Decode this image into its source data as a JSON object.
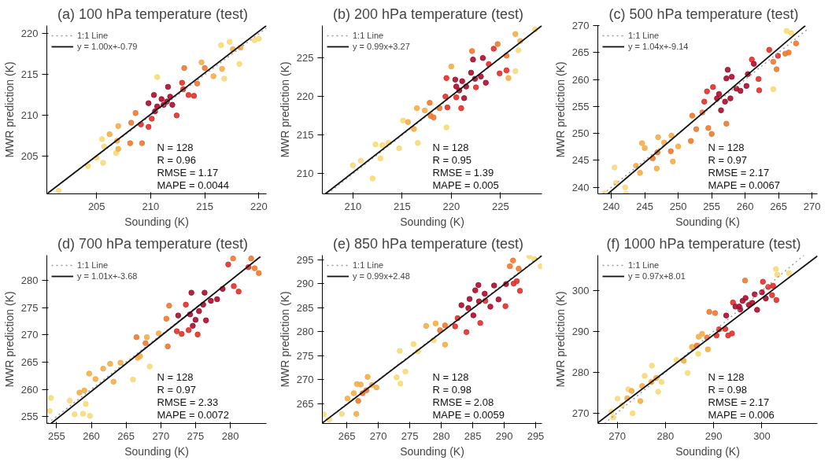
{
  "chart_data": [
    {
      "type": "scatter",
      "title": "(a)   100 hPa temperature (test)",
      "xlabel": "Sounding (K)",
      "ylabel": "MWR prediction (K)",
      "xlim": [
        200.4,
        220.7
      ],
      "ylim": [
        200.4,
        221
      ],
      "xticks": [
        205,
        210,
        215,
        220
      ],
      "yticks": [
        205,
        210,
        215,
        220
      ],
      "grid": false,
      "legend": "top left",
      "annotations": [
        "N = 128",
        "R = 0.96",
        "RMSE = 1.17",
        "MAPE = 0.0044"
      ],
      "series": [
        {
          "type": "scatter",
          "marker": "circle",
          "color": "#f7dc7a",
          "x": [
            201.5,
            204.2,
            205,
            205.6,
            205.5,
            205.7,
            206.8,
            216.5,
            217.3,
            219.6,
            220,
            216.8,
            218.2,
            210.6
          ],
          "values": [
            200.8,
            203.8,
            204.8,
            204.2,
            207.1,
            206.2,
            205.4,
            218.6,
            219,
            219.2,
            219.4,
            214.5,
            216.3,
            214.7
          ]
        },
        {
          "type": "scatter",
          "marker": "circle",
          "color": "#f5ae4a",
          "x": [
            206.2,
            207,
            206.9,
            207,
            216.6,
            217.6,
            218.3,
            215.8,
            214.7
          ],
          "values": [
            207.7,
            208.7,
            206.9,
            205.9,
            215.7,
            218.1,
            218.3,
            214.8,
            216.5
          ]
        },
        {
          "type": "scatter",
          "marker": "circle",
          "color": "#ef7a33",
          "x": [
            208.2,
            208.1,
            208.6,
            209.2,
            215,
            213.1,
            214.3
          ],
          "values": [
            209.1,
            206.6,
            210.3,
            206.6,
            215.8,
            215.8,
            213.9
          ]
        },
        {
          "type": "scatter",
          "marker": "circle",
          "color": "#e0322a",
          "x": [
            209.1,
            209.8,
            210.1,
            212.4,
            213,
            213.5,
            214,
            212.9
          ],
          "values": [
            208.9,
            208.6,
            209.6,
            210,
            213.2,
            212.5,
            212.4,
            214
          ]
        },
        {
          "type": "scatter",
          "marker": "circle",
          "color": "#a8102e",
          "x": [
            210.6,
            211,
            211.5,
            211.2,
            211.6,
            212,
            210.4,
            209.8,
            210.3,
            211.8
          ],
          "values": [
            211.1,
            212,
            211.7,
            211.3,
            213.5,
            211.3,
            210.5,
            211.5,
            212.5,
            212.3
          ]
        },
        {
          "type": "line",
          "name": "1:1 Line",
          "color": "#999999",
          "line_style": "dotted",
          "x": [
            200.4,
            220.7
          ],
          "values": [
            200.4,
            220.7
          ]
        },
        {
          "type": "line",
          "name": "y = 1.00x+-0.79",
          "color": "#111111",
          "line_style": "solid",
          "x": [
            200.5,
            220.7
          ],
          "values": [
            200.5,
            221
          ]
        }
      ]
    },
    {
      "type": "scatter",
      "title": "(b)   200 hPa temperature (test)",
      "xlabel": "Sounding (K)",
      "ylabel": "MWR prediction (K)",
      "xlim": [
        206.9,
        229.2
      ],
      "ylim": [
        207.4,
        229.2
      ],
      "xticks": [
        210,
        215,
        220,
        225
      ],
      "yticks": [
        210,
        215,
        220,
        225
      ],
      "grid": false,
      "legend": "top left",
      "annotations": [
        "N = 128",
        "R = 0.95",
        "RMSE = 1.39",
        "MAPE = 0.005"
      ],
      "series": [
        {
          "type": "scatter",
          "marker": "circle",
          "color": "#f7dc7a",
          "x": [
            210,
            210.8,
            212,
            212.3,
            212.8,
            213,
            213.6,
            214.7,
            228.5,
            215.1,
            216.6,
            219.5,
            226.5,
            226.8
          ],
          "values": [
            211.1,
            211.7,
            209.4,
            213.8,
            212,
            213.7,
            214,
            213.3,
            228.7,
            216.9,
            214,
            216,
            223.3,
            226
          ]
        },
        {
          "type": "scatter",
          "marker": "circle",
          "color": "#f5ae4a",
          "x": [
            215.6,
            216.2,
            216.5,
            217.3,
            220,
            226.5,
            227,
            225.8
          ],
          "values": [
            216.7,
            215.8,
            218.5,
            218.2,
            223.9,
            228.1,
            227.2,
            222.4
          ]
        },
        {
          "type": "scatter",
          "marker": "circle",
          "color": "#ef7a33",
          "x": [
            217.8,
            218.2,
            218.8,
            222.1,
            224.7,
            225.6,
            217.9
          ],
          "values": [
            219.2,
            217.3,
            218.5,
            225.9,
            226.8,
            225.3,
            217.5
          ]
        },
        {
          "type": "scatter",
          "marker": "circle",
          "color": "#e0322a",
          "x": [
            219.4,
            219.5,
            219.6,
            220.5,
            221,
            223.8,
            224.9,
            222.5,
            224.3,
            225.6
          ],
          "values": [
            220,
            222.4,
            218.6,
            219.9,
            218.5,
            224.2,
            223,
            221.2,
            226.2,
            223.4
          ]
        },
        {
          "type": "scatter",
          "marker": "circle",
          "color": "#a8102e",
          "x": [
            220.5,
            220.8,
            221.3,
            221.5,
            222,
            222.4,
            223,
            223.2,
            223.5,
            220.4,
            222.2,
            221.1
          ],
          "values": [
            221.3,
            220.8,
            219.8,
            221.3,
            223.1,
            222.3,
            222.6,
            225,
            221.8,
            222.2,
            224.8,
            222
          ]
        },
        {
          "type": "line",
          "name": "1:1 Line",
          "color": "#999999",
          "line_style": "dotted",
          "x": [
            207.4,
            229.2
          ],
          "values": [
            207.4,
            229.2
          ]
        },
        {
          "type": "line",
          "name": "y = 0.99x+3.27",
          "color": "#111111",
          "line_style": "solid",
          "x": [
            207.2,
            229.2
          ],
          "values": [
            207.4,
            229.2
          ]
        }
      ]
    },
    {
      "type": "scatter",
      "title": "(c)   500 hPa temperature (test)",
      "xlabel": "Sounding (K)",
      "ylabel": "MWR prediction (K)",
      "xlim": [
        238,
        270.8
      ],
      "ylim": [
        238.8,
        270
      ],
      "xticks": [
        240,
        245,
        250,
        255,
        260,
        265,
        270
      ],
      "yticks": [
        240,
        245,
        250,
        255,
        260,
        265,
        270
      ],
      "grid": false,
      "legend": "top left",
      "annotations": [
        "N = 128",
        "R = 0.97",
        "RMSE = 2.17",
        "MAPE = 0.0067"
      ],
      "series": [
        {
          "type": "scatter",
          "marker": "circle",
          "color": "#f7dc7a",
          "x": [
            240.5,
            240.7,
            242.1,
            242.2,
            264.2,
            266.2,
            266.9,
            239
          ],
          "values": [
            243.7,
            240.8,
            240,
            238.8,
            258.2,
            269,
            268.6,
            238.9
          ]
        },
        {
          "type": "scatter",
          "marker": "circle",
          "color": "#f5ae4a",
          "x": [
            243.7,
            244.6,
            245,
            244.3,
            247,
            247.9,
            249,
            249.2,
            250,
            246.8
          ],
          "values": [
            244,
            248.2,
            247.3,
            242.7,
            249.3,
            248.3,
            249.6,
            244.8,
            247.6,
            243.5
          ]
        },
        {
          "type": "scatter",
          "marker": "circle",
          "color": "#ef7a33",
          "x": [
            246.2,
            246.9,
            248.9,
            251.9,
            252.1,
            252.7,
            253.6,
            254.5,
            255,
            257.2,
            264.2,
            264.7,
            266.5,
            267.6,
            266
          ],
          "values": [
            245.4,
            246.5,
            246.7,
            248.6,
            253.3,
            250.8,
            253.9,
            251,
            249.9,
            251.8,
            263.3,
            261.9,
            265,
            266.7,
            264.8
          ]
        },
        {
          "type": "scatter",
          "marker": "circle",
          "color": "#e0322a",
          "x": [
            253.9,
            254.3,
            255.2,
            261,
            262,
            263.6,
            264.9,
            262.1
          ],
          "values": [
            255.9,
            257.8,
            258.6,
            263.7,
            260.1,
            265.5,
            264.4,
            258
          ]
        },
        {
          "type": "scatter",
          "marker": "circle",
          "color": "#a8102e",
          "x": [
            255.8,
            256.1,
            256.4,
            257,
            257.4,
            258,
            257.8,
            258.7,
            259.3,
            260.2,
            260.4,
            261.3,
            257.2
          ],
          "values": [
            256.5,
            257.3,
            254.3,
            255.9,
            261.8,
            260.5,
            256.5,
            258.3,
            257.9,
            258.8,
            261,
            262.9,
            260.2
          ]
        },
        {
          "type": "line",
          "name": "1:1 Line",
          "color": "#999999",
          "line_style": "dotted",
          "x": [
            238.8,
            269.5
          ],
          "values": [
            238.8,
            269.5
          ]
        },
        {
          "type": "line",
          "name": "y = 1.04x+-9.14",
          "color": "#111111",
          "line_style": "solid",
          "x": [
            239.5,
            269
          ],
          "values": [
            238.8,
            270
          ]
        }
      ]
    },
    {
      "type": "scatter",
      "title": "(d)   700 hPa temperature (test)",
      "xlabel": "Sounding (K)",
      "ylabel": "MWR prediction (K)",
      "xlim": [
        253.6,
        285.2
      ],
      "ylim": [
        253.7,
        284.7
      ],
      "xticks": [
        255,
        260,
        265,
        270,
        275,
        280
      ],
      "yticks": [
        255,
        260,
        265,
        270,
        275,
        280
      ],
      "grid": false,
      "legend": "top left",
      "annotations": [
        "N = 128",
        "R = 0.97",
        "RMSE = 2.33",
        "MAPE = 0.0072"
      ],
      "series": [
        {
          "type": "scatter",
          "marker": "circle",
          "color": "#f7dc7a",
          "x": [
            254.2,
            254,
            256.9,
            257.6,
            258.8,
            259.2,
            259.8,
            266,
            268.4
          ],
          "values": [
            258.4,
            256,
            257.9,
            255.4,
            255.5,
            257.3,
            255.1,
            261.8,
            264.2
          ]
        },
        {
          "type": "scatter",
          "marker": "circle",
          "color": "#f5ae4a",
          "x": [
            258.3,
            259,
            259.7,
            260.6,
            261.7,
            262.7,
            263.2,
            264.2,
            266.7,
            267,
            268,
            269.7
          ],
          "values": [
            259.4,
            259.8,
            262.9,
            261.9,
            263.8,
            264.7,
            261.4,
            264.9,
            265.8,
            266.1,
            269.6,
            270.3
          ]
        },
        {
          "type": "scatter",
          "marker": "circle",
          "color": "#ef7a33",
          "x": [
            266.5,
            267.8,
            271,
            270.8,
            271.2,
            283,
            284.1,
            283.5,
            280.4
          ],
          "values": [
            269.6,
            268.5,
            267.9,
            273,
            275.4,
            284.1,
            281.4,
            282.3,
            284.1
          ]
        },
        {
          "type": "scatter",
          "marker": "circle",
          "color": "#e0322a",
          "x": [
            272.3,
            273,
            273.6,
            274,
            279.7,
            281.2,
            280.5,
            282.6,
            275.3
          ],
          "values": [
            270.7,
            270.2,
            275.6,
            270.9,
            283,
            278,
            279,
            282.5,
            270.1
          ]
        },
        {
          "type": "scatter",
          "marker": "circle",
          "color": "#a8102e",
          "x": [
            272.5,
            274.2,
            274.6,
            275,
            275.5,
            276.1,
            276.3,
            277.2,
            278.1,
            278.9,
            274.4,
            276.5
          ],
          "values": [
            273.6,
            273.8,
            271.7,
            272.8,
            274.4,
            275.6,
            277.8,
            276.3,
            276.6,
            278.5,
            277.8,
            272.7
          ]
        },
        {
          "type": "line",
          "name": "1:1 Line",
          "color": "#999999",
          "line_style": "dotted",
          "x": [
            253.7,
            284.5
          ],
          "values": [
            253.7,
            284.5
          ]
        },
        {
          "type": "line",
          "name": "y = 1.01x+-3.68",
          "color": "#111111",
          "line_style": "solid",
          "x": [
            254.2,
            284.3
          ],
          "values": [
            253.7,
            284.4
          ]
        }
      ]
    },
    {
      "type": "scatter",
      "title": "(e)   850 hPa temperature (test)",
      "xlabel": "Sounding (K)",
      "ylabel": "MWR prediction (K)",
      "xlim": [
        261.1,
        296
      ],
      "ylim": [
        260.9,
        295.9
      ],
      "xticks": [
        265,
        270,
        275,
        280,
        285,
        290,
        295
      ],
      "yticks": [
        265,
        270,
        275,
        280,
        285,
        290,
        295
      ],
      "grid": false,
      "legend": "top left",
      "annotations": [
        "N = 128",
        "R = 0.98",
        "RMSE = 2.08",
        "MAPE = 0.0059"
      ],
      "series": [
        {
          "type": "scatter",
          "marker": "circle",
          "color": "#f7dc7a",
          "x": [
            261.3,
            262.2,
            264.2,
            272.9,
            273.4,
            274.3,
            273.5,
            275.6,
            276.3,
            278.8,
            294,
            295.8,
            294.8
          ],
          "values": [
            262.8,
            261.7,
            262.9,
            270.5,
            276,
            271.7,
            269.2,
            277.4,
            275.9,
            278.2,
            295.7,
            293.6,
            295.1
          ]
        },
        {
          "type": "scatter",
          "marker": "circle",
          "color": "#f5ae4a",
          "x": [
            265.1,
            266.1,
            266.5,
            266.6,
            267.2,
            268.3,
            269,
            269.7,
            277.6,
            279.1,
            280.6
          ],
          "values": [
            266.1,
            267.2,
            262.9,
            269.1,
            269,
            270.6,
            268.9,
            268.4,
            281.2,
            281.7,
            277.3
          ]
        },
        {
          "type": "scatter",
          "marker": "circle",
          "color": "#ef7a33",
          "x": [
            266.8,
            267.5,
            268.1,
            279.8,
            280.6,
            290.9,
            292.3,
            291.4
          ],
          "values": [
            265.6,
            267.2,
            267.8,
            280.3,
            281.3,
            293.6,
            293.1,
            294.8
          ]
        },
        {
          "type": "scatter",
          "marker": "circle",
          "color": "#e0322a",
          "x": [
            282.2,
            282.6,
            284,
            286.2,
            287,
            290.2,
            291.5,
            292,
            292.5
          ],
          "values": [
            281.1,
            282.8,
            279.9,
            281.8,
            286.4,
            285.3,
            290,
            290.5,
            288.5
          ]
        },
        {
          "type": "scatter",
          "marker": "circle",
          "color": "#a8102e",
          "x": [
            283.2,
            284.5,
            285.1,
            285.4,
            286,
            286.9,
            287.8,
            288.4,
            289.1,
            290.3,
            285.9,
            284.3
          ],
          "values": [
            285.5,
            286.8,
            283.4,
            288.6,
            286.3,
            287.9,
            285.2,
            289.6,
            286.7,
            289.9,
            289.7,
            284.9
          ]
        },
        {
          "type": "line",
          "name": "1:1 Line",
          "color": "#999999",
          "line_style": "dotted",
          "x": [
            261.1,
            295.9
          ],
          "values": [
            261.1,
            295.9
          ]
        },
        {
          "type": "line",
          "name": "y = 0.99x+2.48",
          "color": "#111111",
          "line_style": "solid",
          "x": [
            261.1,
            296
          ],
          "values": [
            261,
            295.8
          ]
        }
      ]
    },
    {
      "type": "scatter",
      "title": "(f)   1000 hPa temperature (test)",
      "xlabel": "Sounding (K)",
      "ylabel": "MWR prediction (K)",
      "xlim": [
        266,
        311.5
      ],
      "ylim": [
        267.4,
        308.7
      ],
      "xticks": [
        270,
        280,
        290,
        300
      ],
      "yticks": [
        270,
        280,
        290,
        300
      ],
      "grid": false,
      "legend": "top left",
      "annotations": [
        "N = 128",
        "R = 0.98",
        "RMSE = 2.17",
        "MAPE = 0.006"
      ],
      "series": [
        {
          "type": "scatter",
          "marker": "circle",
          "color": "#f7dc7a",
          "x": [
            268.8,
            269.2,
            270.1,
            271,
            272.3,
            273.2,
            275.7,
            277.2,
            278.5,
            279.2,
            282.3,
            284.6,
            286.8,
            302.9,
            305.6,
            303.2
          ],
          "values": [
            270.3,
            268.9,
            273.5,
            271.9,
            275.8,
            269.9,
            279.1,
            281.6,
            275.2,
            277.6,
            283,
            279.8,
            284.5,
            305.3,
            304.3,
            303.9
          ]
        },
        {
          "type": "scatter",
          "marker": "circle",
          "color": "#f5ae4a",
          "x": [
            272.1,
            273,
            274.8,
            275.2,
            277.1,
            278.1,
            283.8,
            285.5,
            286.9,
            287.6,
            288.8
          ],
          "values": [
            273.6,
            275.4,
            272.9,
            276.6,
            277.6,
            278.6,
            282.8,
            286.2,
            288.7,
            289.4,
            285.6
          ]
        },
        {
          "type": "scatter",
          "marker": "circle",
          "color": "#ef7a33",
          "x": [
            286.5,
            288.6,
            289.1,
            290.3,
            296.5
          ],
          "values": [
            286.5,
            288.5,
            294.8,
            294.5,
            302.5
          ]
        },
        {
          "type": "scatter",
          "marker": "circle",
          "color": "#e0322a",
          "x": [
            290.6,
            291.1,
            292.4,
            293,
            293.8,
            294,
            301.3,
            302.1,
            302.3,
            303,
            300.2
          ],
          "values": [
            289,
            290.5,
            290.6,
            289,
            289.5,
            297.1,
            300.9,
            298.9,
            301.2,
            297.7,
            302.2
          ]
        },
        {
          "type": "scatter",
          "marker": "circle",
          "color": "#a8102e",
          "x": [
            292.6,
            294.5,
            295.3,
            296,
            296.6,
            297.3,
            298,
            298.5,
            299,
            300,
            300.8,
            295.5
          ],
          "values": [
            293.9,
            296.1,
            296.1,
            297.5,
            298.2,
            296.5,
            297,
            299.1,
            295.3,
            299.6,
            298.1,
            295.4
          ]
        },
        {
          "type": "line",
          "name": "1:1 Line",
          "color": "#999999",
          "line_style": "dotted",
          "x": [
            267.4,
            308.7
          ],
          "values": [
            267.4,
            308.7
          ]
        },
        {
          "type": "line",
          "name": "y = 0.97x+8.01",
          "color": "#111111",
          "line_style": "solid",
          "x": [
            266,
            311.5
          ],
          "values": [
            267.6,
            308.5
          ]
        }
      ]
    }
  ]
}
